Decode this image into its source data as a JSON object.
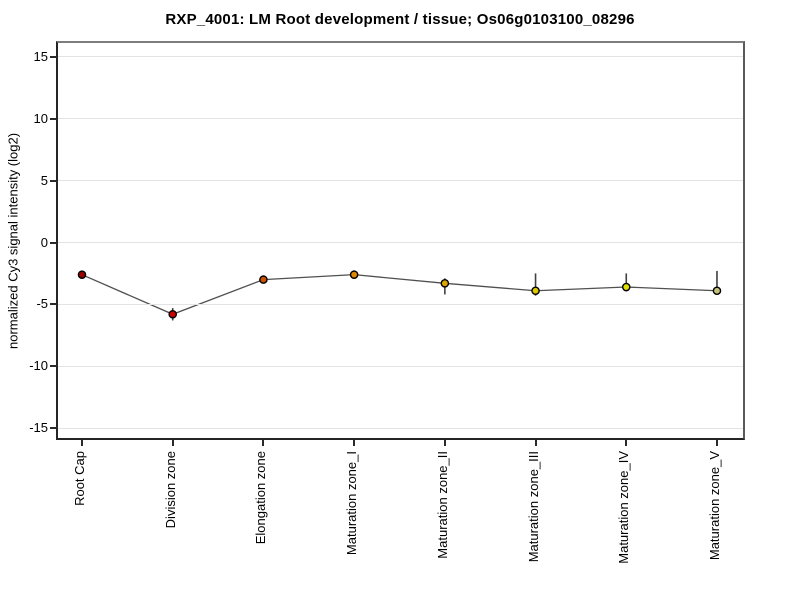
{
  "title": "RXP_4001: LM Root development / tissue; Os06g0103100_08296",
  "chart_data": {
    "type": "line",
    "title": "RXP_4001: LM Root development / tissue; Os06g0103100_08296",
    "xlabel": "",
    "ylabel": "normalized Cy3 signal intensity (log2)",
    "ylim": [
      -16,
      16
    ],
    "yticks": [
      15,
      10,
      5,
      0,
      -5,
      -10,
      -15
    ],
    "grid": "horizontal-light-gray",
    "legend": "none",
    "categories": [
      "Root Cap",
      "Division zone",
      "Elongation zone",
      "Maturation zone_I",
      "Maturation zone_II",
      "Maturation zone_III",
      "Maturation zone_IV",
      "Maturation zone_V"
    ],
    "series": [
      {
        "name": "normalized Cy3 signal intensity (log2)",
        "values": [
          -2.6,
          -5.8,
          -3.0,
          -2.6,
          -3.3,
          -3.9,
          -3.6,
          -3.9
        ],
        "error_up": [
          0.3,
          0.5,
          0.3,
          0.35,
          0.4,
          1.4,
          1.1,
          1.6
        ],
        "error_down": [
          0.3,
          0.5,
          0.3,
          0.3,
          0.9,
          0.4,
          0.35,
          0.3
        ],
        "point_colors": [
          "#990000",
          "#cc0000",
          "#cc5200",
          "#dd8800",
          "#dda500",
          "#ddc800",
          "#dede00",
          "#c2c27e"
        ],
        "marker_outline": "#000000",
        "line_color": "#505050",
        "error_bar_color": "#404040"
      }
    ],
    "colors": {
      "background": "#ffffff",
      "grid": "#e3e3e3",
      "axis_text": "#000000"
    }
  }
}
